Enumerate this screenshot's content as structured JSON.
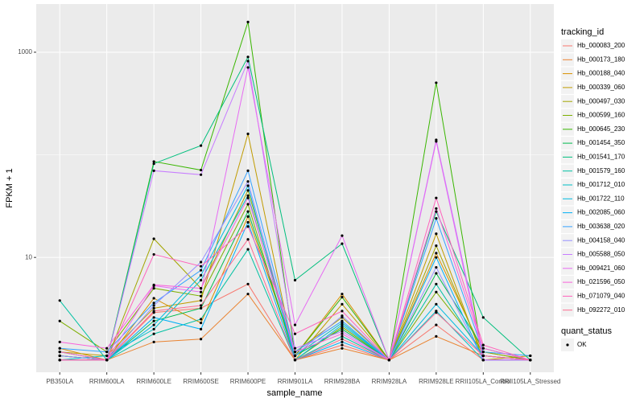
{
  "chart_data": {
    "type": "line",
    "x_label": "sample_name",
    "y_label": "FPKM + 1",
    "y_scale": "log",
    "grid": true,
    "legend": "right",
    "legend_title": "tracking_id",
    "categories": [
      "PB350LA",
      "RRIM600LA",
      "RRIM600LE",
      "RRIM600SE",
      "RRIM600PE",
      "RRIM901LA",
      "RRIM928BA",
      "RRIM928LA",
      "RRIM928LE",
      "RRII105LA_Control",
      "RRII105LA_Stressed"
    ],
    "ylim": [
      0.76,
      2950
    ],
    "yticks": [
      10,
      1000
    ],
    "point_color": "#000000",
    "quant_status": {
      "title": "quant_status",
      "labels": [
        "OK"
      ]
    },
    "series": [
      {
        "name": "Hb_000083_200",
        "color": "#F8766D",
        "values": [
          1.1,
          1.0,
          2.9,
          3.2,
          5.5,
          1.0,
          1.4,
          1.0,
          2.2,
          1.0,
          1.0
        ]
      },
      {
        "name": "Hb_000173_180",
        "color": "#EA8331",
        "values": [
          1.2,
          1.0,
          1.5,
          1.6,
          4.4,
          1.0,
          1.3,
          1.0,
          1.7,
          1.1,
          1.0
        ]
      },
      {
        "name": "Hb_000188_040",
        "color": "#D89000",
        "values": [
          1.3,
          1.0,
          4.0,
          2.3,
          25,
          1.1,
          4.4,
          1.0,
          11,
          1.2,
          1.0
        ]
      },
      {
        "name": "Hb_000339_060",
        "color": "#C09B00",
        "values": [
          1.2,
          1.1,
          3.2,
          3.8,
          160,
          1.0,
          3.5,
          1.0,
          17,
          1.0,
          1.1
        ]
      },
      {
        "name": "Hb_000497_030",
        "color": "#A3A500",
        "values": [
          1.1,
          1.0,
          15.2,
          5.0,
          45,
          1.2,
          2.6,
          1.0,
          13,
          1.1,
          1.0
        ]
      },
      {
        "name": "Hb_000599_160",
        "color": "#7CAE00",
        "values": [
          2.4,
          1.2,
          5.0,
          4.2,
          33,
          1.0,
          2.1,
          1.0,
          4.6,
          1.2,
          1.0
        ]
      },
      {
        "name": "Hb_000645_230",
        "color": "#39B600",
        "values": [
          1.0,
          1.0,
          86,
          71,
          1970,
          1.1,
          4.1,
          1.0,
          504,
          1.0,
          1.0
        ]
      },
      {
        "name": "Hb_001454_350",
        "color": "#00BB4E",
        "values": [
          1.1,
          1.0,
          2.4,
          3.2,
          28,
          1.1,
          2.0,
          1.0,
          7,
          1.3,
          1.0
        ]
      },
      {
        "name": "Hb_001541_170",
        "color": "#00BF7D",
        "values": [
          1.0,
          1.0,
          82,
          123,
          900,
          6.0,
          13.6,
          1.0,
          28,
          2.6,
          1.0
        ]
      },
      {
        "name": "Hb_001579_160",
        "color": "#00C1A3",
        "values": [
          3.8,
          1.0,
          1.8,
          2.5,
          12,
          1.0,
          1.7,
          1.0,
          5.5,
          1.1,
          1.0
        ]
      },
      {
        "name": "Hb_001712_010",
        "color": "#00BFC4",
        "values": [
          1.0,
          1.1,
          2.0,
          6.0,
          40,
          1.1,
          2.3,
          1.0,
          3.0,
          1.0,
          1.0
        ]
      },
      {
        "name": "Hb_001722_110",
        "color": "#00BAE0",
        "values": [
          1.2,
          1.0,
          2.2,
          6.7,
          50,
          1.0,
          2.2,
          1.0,
          3.5,
          1.1,
          1.0
        ]
      },
      {
        "name": "Hb_002085_060",
        "color": "#00B0F6",
        "values": [
          1.0,
          1.0,
          2.6,
          2.0,
          22,
          1.0,
          1.5,
          1.0,
          10,
          1.0,
          1.0
        ]
      },
      {
        "name": "Hb_003638_020",
        "color": "#35A2FF",
        "values": [
          1.3,
          1.2,
          3.6,
          7.5,
          70,
          1.2,
          2.4,
          1.0,
          24,
          1.2,
          1.1
        ]
      },
      {
        "name": "Hb_004158_040",
        "color": "#9590FF",
        "values": [
          1.1,
          1.0,
          3.4,
          9.0,
          55,
          1.1,
          2.7,
          1.0,
          8,
          1.0,
          1.0
        ]
      },
      {
        "name": "Hb_005588_050",
        "color": "#C77CFF",
        "values": [
          1.0,
          1.0,
          70,
          64,
          820,
          1.3,
          1.9,
          1.0,
          140,
          1.1,
          1.0
        ]
      },
      {
        "name": "Hb_009421_060",
        "color": "#E76BF3",
        "values": [
          1.0,
          1.0,
          5.3,
          4.6,
          710,
          2.2,
          16.3,
          1.0,
          135,
          1.0,
          1.0
        ]
      },
      {
        "name": "Hb_021596_050",
        "color": "#FA62DB",
        "values": [
          1.5,
          1.3,
          5.4,
          5.0,
          38,
          1.2,
          1.8,
          1.0,
          30,
          1.3,
          1.0
        ]
      },
      {
        "name": "Hb_071079_040",
        "color": "#FF62BC",
        "values": [
          1.2,
          1.0,
          10.7,
          8.2,
          20,
          1.8,
          3.0,
          1.0,
          38,
          1.4,
          1.0
        ]
      },
      {
        "name": "Hb_092272_010",
        "color": "#FF6C91",
        "values": [
          1.0,
          1.0,
          3.0,
          3.4,
          15,
          1.0,
          1.6,
          1.0,
          2.9,
          1.1,
          1.0
        ]
      }
    ]
  }
}
